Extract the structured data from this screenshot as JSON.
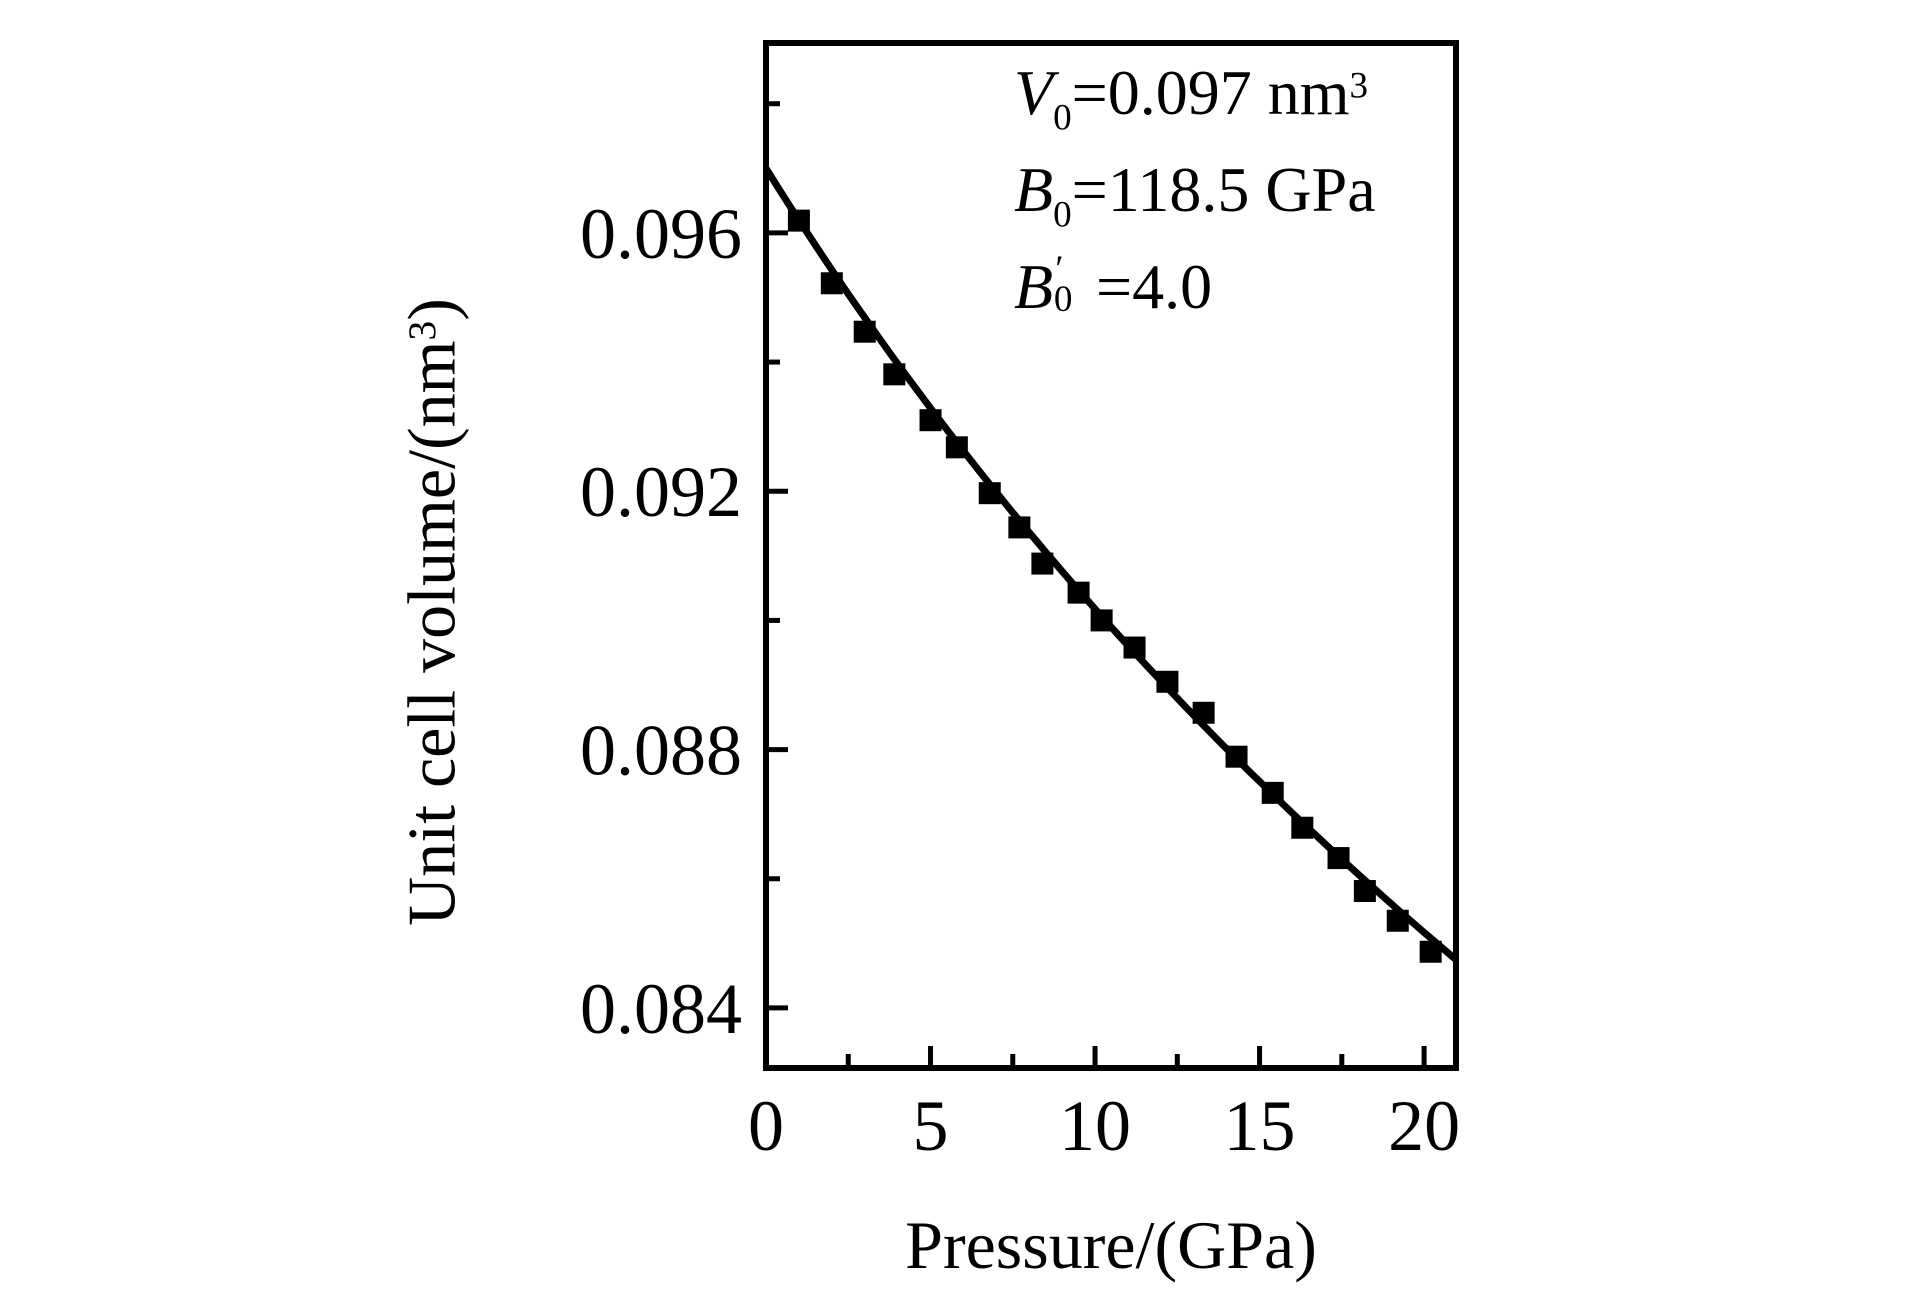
{
  "background": "#ffffff",
  "ink": "#000000",
  "chart_data": {
    "type": "scatter",
    "title": "",
    "grid": false,
    "legend": null,
    "xlabel": {
      "text": "Pressure/(GPa)"
    },
    "ylabel": {
      "pre": "Unit cell volume/(nm",
      "sup": "3",
      "post": ")"
    },
    "x_axis": {
      "min": 0,
      "max": 20.97,
      "major_ticks": [
        0,
        5,
        10,
        15,
        20
      ],
      "major_tick_labels": [
        "0",
        "5",
        "10",
        "15",
        "20"
      ],
      "minor_ticks": [
        2.5,
        7.5,
        12.5,
        17.5
      ]
    },
    "y_axis": {
      "min": 0.08307,
      "max": 0.09894,
      "major_ticks": [
        0.084,
        0.088,
        0.092,
        0.096
      ],
      "major_tick_labels": [
        "0.084",
        "0.088",
        "0.092",
        "0.096"
      ],
      "minor_ticks": [
        0.086,
        0.09,
        0.094,
        0.098
      ]
    },
    "series": [
      {
        "name": "measured-unit-cell-volume",
        "marker": "square",
        "color": "#000000",
        "points": [
          [
            1.0,
            0.09619
          ],
          [
            2.0,
            0.09522
          ],
          [
            3.0,
            0.09447
          ],
          [
            3.9,
            0.09381
          ],
          [
            5.0,
            0.0931
          ],
          [
            5.8,
            0.09268
          ],
          [
            6.8,
            0.09197
          ],
          [
            7.7,
            0.09144
          ],
          [
            8.4,
            0.09088
          ],
          [
            9.5,
            0.09043
          ],
          [
            10.2,
            0.09
          ],
          [
            11.2,
            0.08958
          ],
          [
            12.2,
            0.08905
          ],
          [
            13.3,
            0.08857
          ],
          [
            14.3,
            0.08789
          ],
          [
            15.4,
            0.08733
          ],
          [
            16.3,
            0.08679
          ],
          [
            17.4,
            0.08632
          ],
          [
            18.2,
            0.08581
          ],
          [
            19.2,
            0.08535
          ],
          [
            20.2,
            0.08487
          ]
        ]
      },
      {
        "name": "birch-murnaghan-fit-line",
        "type": "line",
        "color": "#000000",
        "fit": {
          "V0": 0.097,
          "B0": 118.5,
          "B0_prime": 4.0
        }
      }
    ],
    "annotation": {
      "lines": [
        {
          "var": "V",
          "sub": "0",
          "rest": "=0.097 nm",
          "sup": "3"
        },
        {
          "var": "B",
          "sub": "0",
          "rest": "=118.5 GPa"
        },
        {
          "var": "B",
          "sub": "0",
          "prime": "′",
          "rest": " =4.0"
        }
      ]
    }
  }
}
